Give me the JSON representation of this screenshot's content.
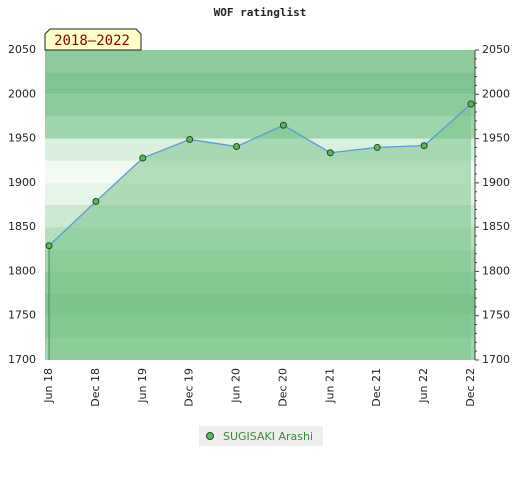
{
  "chart_data": {
    "type": "line",
    "title": "WOF ratinglist",
    "annotation": "2018–2022",
    "categories": [
      "Jun 18",
      "Dec 18",
      "Jun 19",
      "Dec 19",
      "Jun 20",
      "Dec 20",
      "Jun 21",
      "Dec 21",
      "Jun 22",
      "Dec 22"
    ],
    "series": [
      {
        "name": "SUGISAKI Arashi",
        "color": "#5b9bd5",
        "marker_color": "#5cb85c",
        "fill_color": "#7cc48a",
        "values": [
          1829,
          1879,
          1928,
          1949,
          1941,
          1965,
          1934,
          1940,
          1942,
          1989
        ]
      }
    ],
    "ylim": [
      1700,
      2050
    ],
    "yticks": [
      1700,
      1750,
      1800,
      1850,
      1900,
      1950,
      2000,
      2050
    ],
    "grid": true
  }
}
